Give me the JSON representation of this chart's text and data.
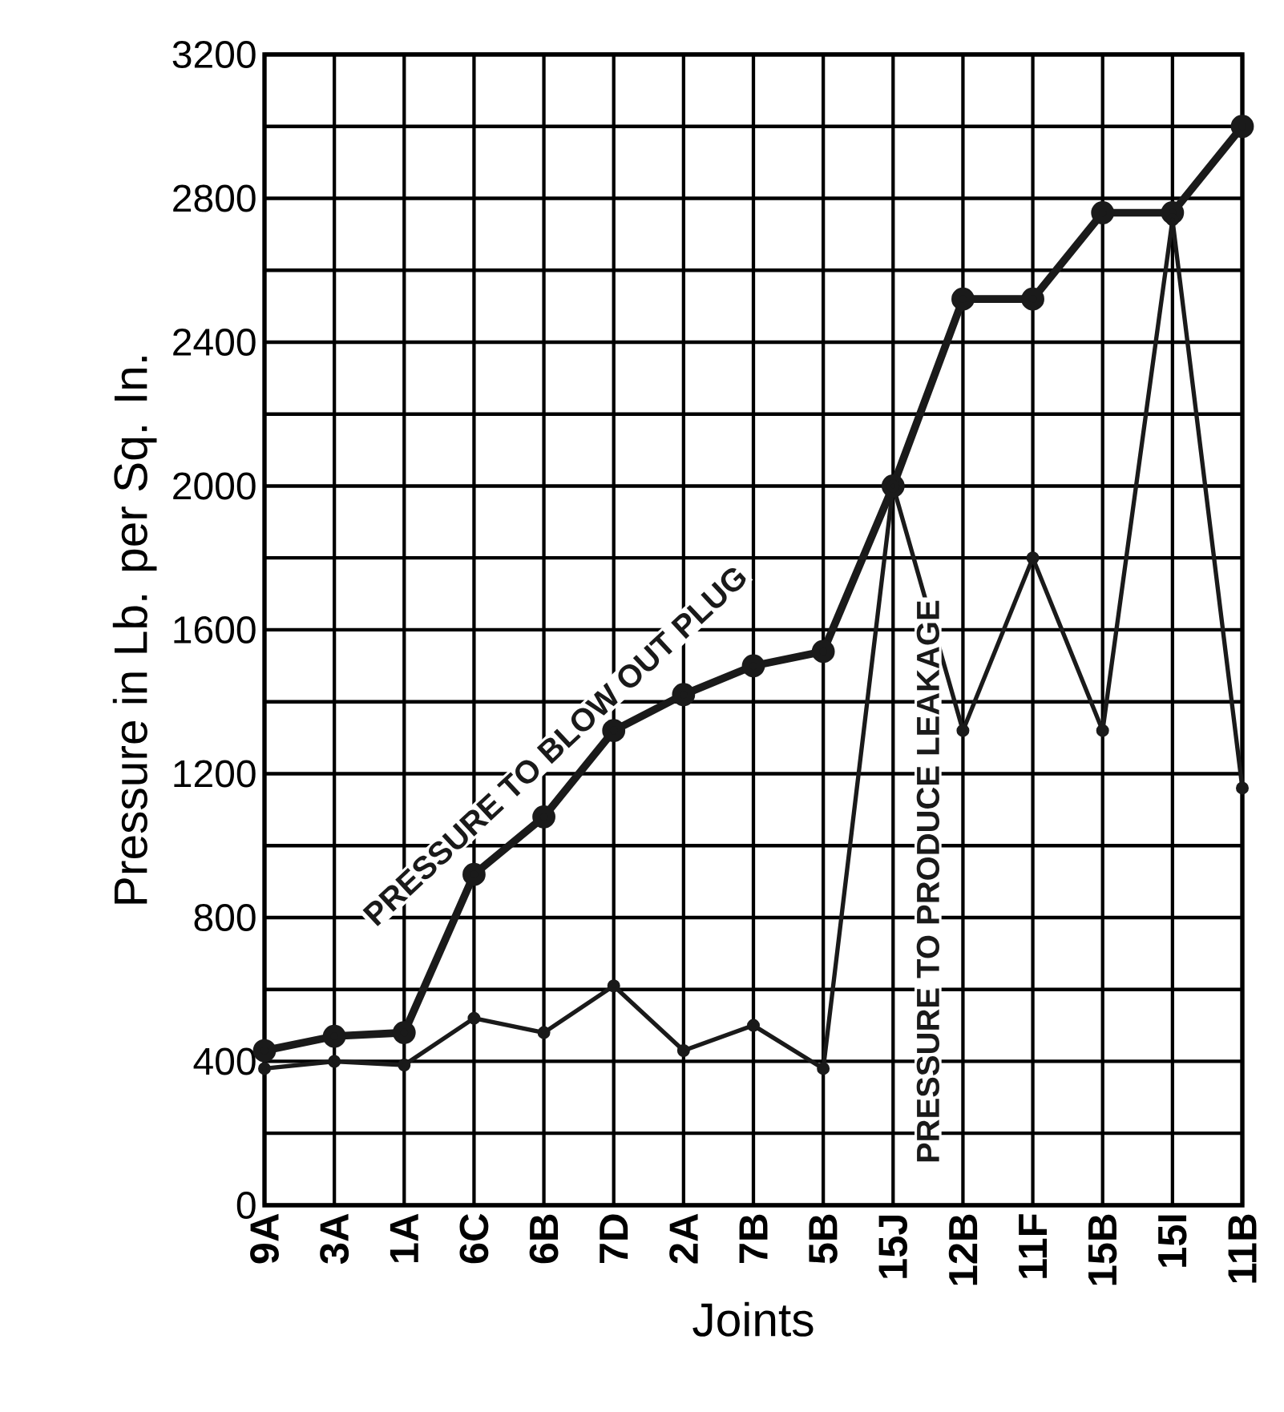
{
  "chart_data": {
    "type": "line",
    "xlabel": "Joints",
    "ylabel": "Pressure in Lb. per Sq. In.",
    "categories": [
      "9A",
      "3A",
      "1A",
      "6C",
      "6B",
      "7D",
      "2A",
      "7B",
      "5B",
      "15J",
      "12B",
      "11F",
      "15B",
      "15I",
      "11B"
    ],
    "series": [
      {
        "name": "PRESSURE TO BLOW OUT PLUG",
        "color": "#1a1a1a",
        "values": [
          430,
          470,
          480,
          920,
          1080,
          1320,
          1420,
          1500,
          1540,
          2000,
          2520,
          2520,
          2760,
          2760,
          3000
        ]
      },
      {
        "name": "PRESSURE TO PRODUCE LEAKAGE",
        "color": "#1a1a1a",
        "values": [
          380,
          400,
          390,
          520,
          480,
          610,
          430,
          500,
          380,
          2000,
          1320,
          1800,
          1320,
          2740,
          1160
        ]
      }
    ],
    "ylim": [
      0,
      3200
    ],
    "yticks": [
      0,
      {
        "value": 200,
        "label": null
      },
      400,
      {
        "value": 600,
        "label": null
      },
      800,
      {
        "value": 1000,
        "label": null
      },
      1200,
      {
        "value": 1400,
        "label": null
      },
      1600,
      {
        "value": 1800,
        "label": null
      },
      2000,
      {
        "value": 2200,
        "label": null
      },
      2400,
      {
        "value": 2600,
        "label": null
      },
      2800,
      {
        "value": 3000,
        "label": null
      },
      3200
    ],
    "grid": true,
    "marker": "circle",
    "line_style": "solid"
  }
}
